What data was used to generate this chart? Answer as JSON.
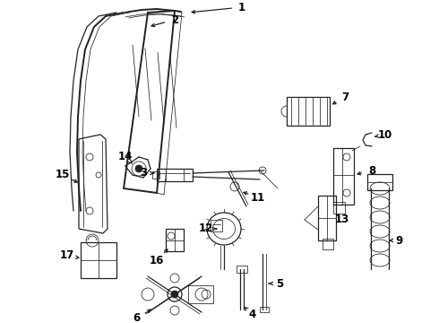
{
  "bg_color": "#ffffff",
  "line_color": "#222222",
  "label_color": "#000000",
  "figsize": [
    4.9,
    3.6
  ],
  "dpi": 100,
  "lw_heavy": 1.4,
  "lw_med": 0.9,
  "lw_thin": 0.55,
  "label_fontsize": 8.5
}
